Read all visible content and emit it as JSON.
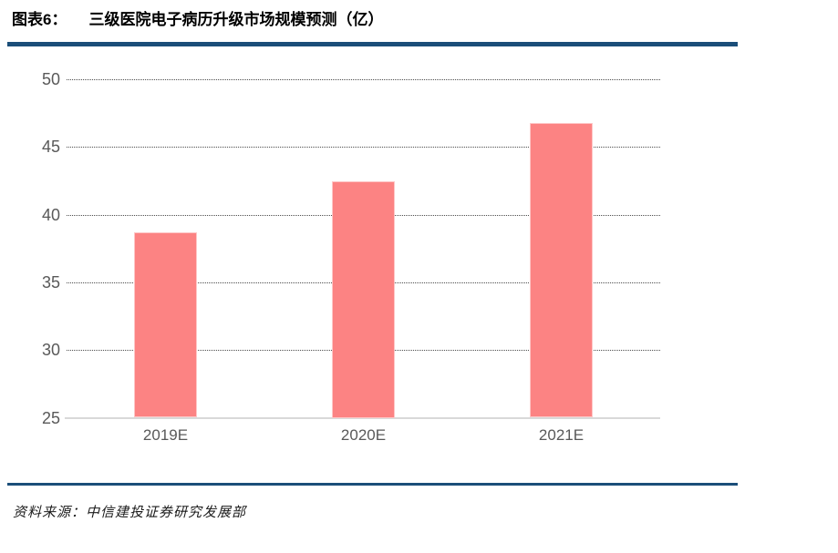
{
  "header": {
    "figure_label": "图表6：",
    "title": "三级医院电子病历升级市场规模预测（亿）"
  },
  "chart_data": {
    "type": "bar",
    "title": "三级医院电子病历升级市场规模预测（亿）",
    "categories": [
      "2019E",
      "2020E",
      "2021E"
    ],
    "values": [
      38.7,
      42.5,
      46.8
    ],
    "xlabel": "",
    "ylabel": "",
    "ylim": [
      25,
      50
    ],
    "yticks": [
      25,
      30,
      35,
      40,
      45,
      50
    ],
    "grid": "horizontal-dotted",
    "legend_position": "none"
  },
  "footer": {
    "source": "资料来源：中信建投证券研究发展部"
  },
  "colors": {
    "accent_rule": "#1B4E79",
    "bar_fill": "#FC8383",
    "grid_line": "#4d4d4d",
    "baseline": "#d9d9d9",
    "axis_text": "#595959",
    "title_text": "#000000"
  }
}
